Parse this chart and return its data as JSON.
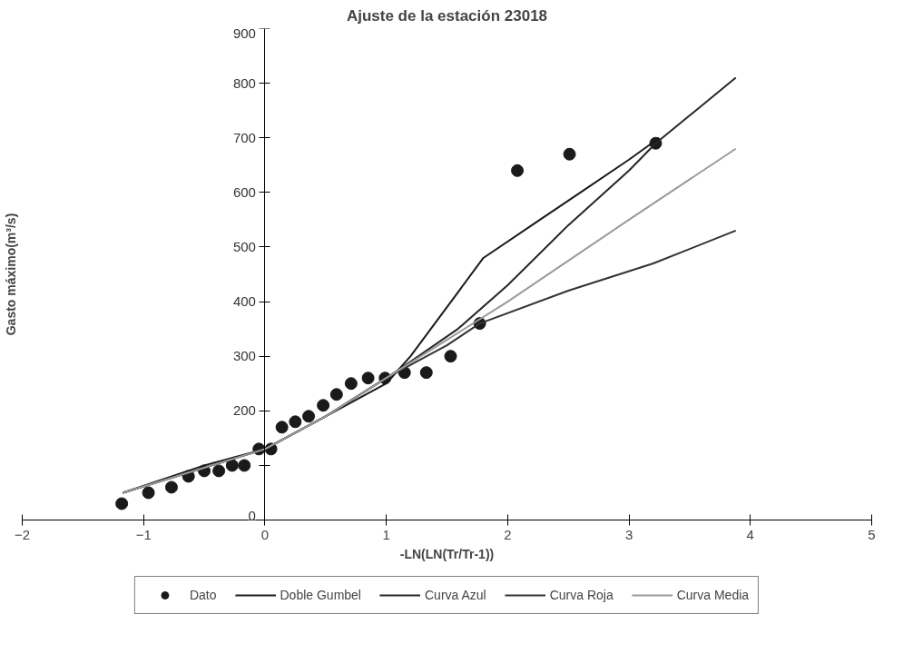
{
  "chart_data": {
    "type": "scatter",
    "title": "Ajuste de la estación 23018",
    "xlabel": "-LN(LN(Tr/Tr-1))",
    "ylabel": "Gasto máximo(m³/s)",
    "xlim": [
      -2,
      5
    ],
    "ylim": [
      0,
      900
    ],
    "xticks": [
      -2,
      -1,
      0,
      1,
      2,
      3,
      4,
      5
    ],
    "yticks": [
      0,
      {
        "value": 100,
        "label": null
      },
      200,
      300,
      400,
      500,
      600,
      700,
      800,
      900
    ],
    "grid": false,
    "legend": "bottom",
    "series": [
      {
        "name": "Dato",
        "marker": "circle",
        "color": "#1a1a1a",
        "x": [
          -1.18,
          -0.96,
          -0.77,
          -0.63,
          -0.5,
          -0.38,
          -0.27,
          -0.17,
          -0.05,
          0.05,
          0.14,
          0.25,
          0.36,
          0.48,
          0.59,
          0.71,
          0.85,
          0.99,
          1.15,
          1.33,
          1.53,
          1.77,
          2.08,
          2.51,
          3.22
        ],
        "values": [
          30,
          50,
          60,
          80,
          90,
          90,
          100,
          100,
          130,
          130,
          170,
          180,
          190,
          210,
          230,
          250,
          260,
          260,
          270,
          270,
          300,
          360,
          640,
          670,
          690
        ]
      },
      {
        "name": "Doble Gumbel",
        "type": "line",
        "color": "#1a1a1a",
        "x": [
          -1.17,
          -0.5,
          0,
          0.5,
          1.0,
          1.2,
          1.4,
          1.6,
          1.8,
          2.2,
          2.6,
          3.0,
          3.25
        ],
        "values": [
          50,
          100,
          130,
          190,
          250,
          300,
          360,
          420,
          480,
          540,
          600,
          660,
          700
        ]
      },
      {
        "name": "Curva Azul",
        "type": "line",
        "color": "#262626",
        "x": [
          -1.17,
          0,
          0.5,
          1.0,
          1.2,
          1.59,
          2.0,
          2.5,
          3.0,
          3.22,
          3.88
        ],
        "values": [
          50,
          130,
          190,
          260,
          290,
          350,
          430,
          540,
          640,
          690,
          810
        ]
      },
      {
        "name": "Curva Roja",
        "type": "line",
        "color": "#333333",
        "x": [
          -1.17,
          0,
          0.5,
          1.0,
          1.5,
          1.77,
          2.5,
          3.2,
          3.88
        ],
        "values": [
          50,
          130,
          190,
          260,
          320,
          360,
          420,
          470,
          530
        ]
      },
      {
        "name": "Curva Media",
        "type": "line",
        "color": "#9a9a9a",
        "x": [
          -1.17,
          0,
          0.5,
          1.0,
          1.5,
          2.0,
          3.0,
          3.88
        ],
        "values": [
          50,
          130,
          190,
          260,
          330,
          400,
          550,
          680
        ]
      }
    ]
  }
}
